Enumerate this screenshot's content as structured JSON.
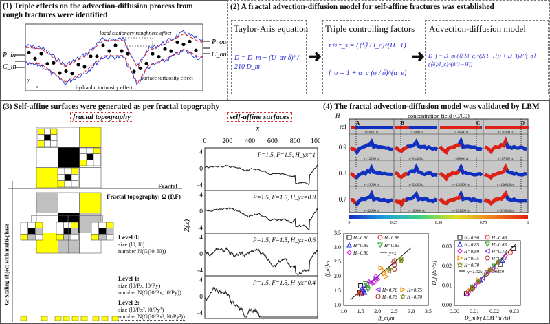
{
  "panel1": {
    "title": "(1) Triple effects on the advection-diffusion process from rough fractures were identified",
    "labels": {
      "p_in": "P_in",
      "c_in": "C_in",
      "p_out": "P_out",
      "c_out": "C_out",
      "local": "local stationary roughness effect",
      "surface": "surface tortuosity effect",
      "hydraulic": "hydraulic tortuosity effect",
      "axis_y": "y",
      "axis_x": "x"
    },
    "colors": {
      "wall": "#2a3cd8",
      "mean": "#e02020",
      "particle": "#000000"
    }
  },
  "panel2": {
    "title": "(2) A fractal advection-diffusion model for self-affine fractures was established",
    "boxes": [
      {
        "title": "Taylor-Aris equation",
        "formulas": [
          "D = D_m + (U_av δ)² / 210 D_m"
        ]
      },
      {
        "title": "Triple controlling factors",
        "formulas": [
          "τ ≈ τ_s = (⟨δ⟩ / l_c)^(H−1)",
          "f_σ = 1 + α_c (σ / δ)^(α_e)"
        ]
      },
      {
        "title": "Advection-diffusion model",
        "formulas": [
          "D_f = D_m (⟨δ⟩/l_c)^(2(1−H)) + D_Tyl/⟨f_σ⟩ (⟨δ⟩/l_c)^(8(1−H))"
        ]
      }
    ],
    "formula_color": "#2a2ad0"
  },
  "panel3": {
    "title": "(3) Self-affine surfaces were generated as per fractal topography",
    "tag_left": "fractal topography",
    "tag_right": "self-affine surfaces",
    "fractal_label": "Fractal",
    "topography_label": "Fractal topography: Ω (P,F)",
    "vertical_label": "G: Scaling object with multi-phase",
    "levels": [
      {
        "name": "Level 0:",
        "size": "size (l0, l0)",
        "number": "number N(G(l0, l0))"
      },
      {
        "name": "Level 1:",
        "size": "size (l0/Px, l0/Py)",
        "number": "number N(G(l0/Px, l0/Py))"
      },
      {
        "name": "Level 2:",
        "size": "size (l0/Px², l0/Py²)",
        "number": "number N(G(l0/Px², l0/Py²))"
      }
    ],
    "colors": {
      "yellow": "#ffff00",
      "gray": "#c0c0c0",
      "black": "#000000"
    },
    "profiles": {
      "xlabel": "x",
      "ylabel": "Z(x)",
      "xticks": [
        "0",
        "200",
        "400",
        "600",
        "800",
        "1000"
      ],
      "yticks": [
        "4",
        "0",
        "-4"
      ],
      "subplots": [
        {
          "label": "P=1.5, F=1.5, H_yx=1",
          "H": 1
        },
        {
          "label": "P=1.5, F=1.5, H_yx=0.8",
          "H": 0.8
        },
        {
          "label": "P=1.5, F=1.5, H_yx=0.6",
          "H": 0.6
        },
        {
          "label": "P=1.5, F=1.5, H_yx=0.4",
          "H": 0.4
        }
      ]
    }
  },
  "panel4": {
    "title": "(4) The fractal advection-diffusion model was validated by LBM",
    "field": {
      "title": "concentration field (C/C0)",
      "axis": "H",
      "columns": [
        "A",
        "B",
        "C",
        "D"
      ],
      "rows": [
        {
          "label": "ref",
          "times": [
            "t=3050 ts",
            "t=7800 ts",
            "t=21600 ts",
            "t=30000 ts"
          ]
        },
        {
          "label": "0.9",
          "times": [
            "t=12200 ts",
            "t=31600 ts",
            "t=80000 ts",
            "t=97000 ts"
          ]
        },
        {
          "label": "0.8",
          "times": [
            "t=21000 ts",
            "t=52000 ts",
            "t=130000 ts",
            "t=156000 ts"
          ]
        },
        {
          "label": "0.7",
          "times": [
            "t=42600 ts",
            "t=106000 ts",
            "t=259000 ts",
            "t=310000 ts"
          ]
        }
      ],
      "colorbar_ticks": [
        "0",
        "0.25",
        "0.50",
        "0.75",
        "1"
      ]
    },
    "chart_data": [
      {
        "type": "scatter",
        "xlabel": "⟨f_σi⟩m",
        "ylabel": "⟨f_σi⟩m",
        "xlim": [
          1.0,
          3.5
        ],
        "ylim": [
          1.0,
          3.5
        ],
        "xticks": [
          "1.0",
          "1.5",
          "2.0",
          "2.5",
          "3.0",
          "3.5"
        ],
        "yticks": [
          "1.0",
          "1.5",
          "2.0",
          "2.5",
          "3.0",
          "3.5"
        ],
        "line_label": "y=x",
        "series": [
          {
            "name": "H=0.90",
            "marker": "square",
            "color": "#222222",
            "points": [
              [
                1.5,
                1.68
              ],
              [
                1.48,
                1.45
              ],
              [
                1.52,
                1.4
              ]
            ]
          },
          {
            "name": "H=0.88",
            "marker": "circle",
            "color": "#e03030",
            "points": [
              [
                1.47,
                1.38
              ],
              [
                1.5,
                1.45
              ],
              [
                1.55,
                1.42
              ]
            ]
          },
          {
            "name": "H=0.85",
            "marker": "triangle-up",
            "color": "#2030e0",
            "points": [
              [
                1.55,
                1.62
              ],
              [
                1.6,
                1.5
              ],
              [
                1.58,
                1.55
              ],
              [
                1.62,
                1.45
              ]
            ]
          },
          {
            "name": "H=0.83",
            "marker": "triangle-down",
            "color": "#20a020",
            "points": [
              [
                1.68,
                1.7
              ],
              [
                1.7,
                1.6
              ],
              [
                1.72,
                1.55
              ],
              [
                1.65,
                1.75
              ]
            ]
          },
          {
            "name": "H=0.80",
            "marker": "diamond",
            "color": "#e020e0",
            "points": [
              [
                1.75,
                1.82
              ],
              [
                1.85,
                1.75
              ],
              [
                1.95,
                2.0
              ],
              [
                2.0,
                1.9
              ],
              [
                1.9,
                1.8
              ]
            ]
          },
          {
            "name": "H=0.78",
            "marker": "triangle-left",
            "color": "#9030e0",
            "points": [
              [
                1.6,
                1.6
              ],
              [
                1.8,
                1.8
              ],
              [
                1.95,
                1.95
              ]
            ]
          },
          {
            "name": "H=0.75",
            "marker": "triangle-right",
            "color": "#f08c00",
            "points": [
              [
                2.1,
                2.3
              ],
              [
                2.2,
                2.1
              ],
              [
                2.25,
                2.0
              ],
              [
                2.2,
                2.2
              ]
            ]
          },
          {
            "name": "H=0.73",
            "marker": "circle",
            "color": "#a03030",
            "points": [
              [
                2.5,
                2.55
              ],
              [
                2.5,
                2.4
              ],
              [
                2.5,
                2.25
              ],
              [
                2.48,
                2.5
              ]
            ]
          },
          {
            "name": "H=0.70",
            "marker": "star",
            "color": "#7a8a20",
            "points": [
              [
                2.7,
                2.65
              ],
              [
                2.7,
                2.55
              ],
              [
                2.68,
                2.6
              ],
              [
                2.35,
                2.2
              ],
              [
                2.35,
                2.25
              ]
            ]
          }
        ]
      },
      {
        "type": "scatter",
        "xlabel": "D_m by LBM (lu²/ts)",
        "ylabel": "D_f (lu²/ts)",
        "xlim": [
          0.0,
          0.033
        ],
        "ylim": [
          0.0,
          0.033
        ],
        "xticks": [
          "0.00",
          "0.01",
          "0.02",
          "0.03"
        ],
        "yticks": [
          "0.00",
          "0.01",
          "0.02",
          "0.03"
        ],
        "line_label": "y=1.02x, R²=0.9859",
        "series": [
          {
            "name": "H=0.90",
            "marker": "square",
            "color": "#222222",
            "points": [
              [
                0.006,
                0.006
              ],
              [
                0.009,
                0.009
              ],
              [
                0.023,
                0.021
              ],
              [
                0.0295,
                0.029
              ]
            ]
          },
          {
            "name": "H=0.88",
            "marker": "circle",
            "color": "#e03030",
            "points": [
              [
                0.007,
                0.007
              ],
              [
                0.012,
                0.012
              ],
              [
                0.021,
                0.018
              ],
              [
                0.028,
                0.027
              ]
            ]
          },
          {
            "name": "H=0.85",
            "marker": "triangle-up",
            "color": "#2030e0",
            "points": [
              [
                0.008,
                0.008
              ],
              [
                0.013,
                0.013
              ],
              [
                0.018,
                0.018
              ],
              [
                0.024,
                0.023
              ]
            ]
          },
          {
            "name": "H=0.83",
            "marker": "triangle-down",
            "color": "#20a020",
            "points": [
              [
                0.009,
                0.009
              ],
              [
                0.015,
                0.015
              ],
              [
                0.02,
                0.02
              ]
            ]
          },
          {
            "name": "H=0.80",
            "marker": "diamond",
            "color": "#e020e0",
            "points": [
              [
                0.0065,
                0.0055
              ],
              [
                0.011,
                0.011
              ],
              [
                0.017,
                0.017
              ],
              [
                0.0255,
                0.0255
              ]
            ]
          },
          {
            "name": "H=0.78",
            "marker": "triangle-left",
            "color": "#9030e0",
            "points": [
              [
                0.01,
                0.01
              ],
              [
                0.014,
                0.014
              ],
              [
                0.019,
                0.019
              ]
            ]
          },
          {
            "name": "H=0.75",
            "marker": "triangle-right",
            "color": "#f08c00",
            "points": [
              [
                0.008,
                0.008
              ],
              [
                0.012,
                0.013
              ],
              [
                0.018,
                0.018
              ]
            ]
          },
          {
            "name": "H=0.73",
            "marker": "circle",
            "color": "#a03030",
            "points": [
              [
                0.009,
                0.0085
              ],
              [
                0.016,
                0.016
              ],
              [
                0.022,
                0.022
              ]
            ]
          },
          {
            "name": "H=0.70",
            "marker": "star",
            "color": "#7a8a20",
            "points": [
              [
                0.009,
                0.0095
              ],
              [
                0.012,
                0.0125
              ],
              [
                0.018,
                0.0185
              ],
              [
                0.022,
                0.0225
              ]
            ]
          }
        ]
      }
    ]
  }
}
